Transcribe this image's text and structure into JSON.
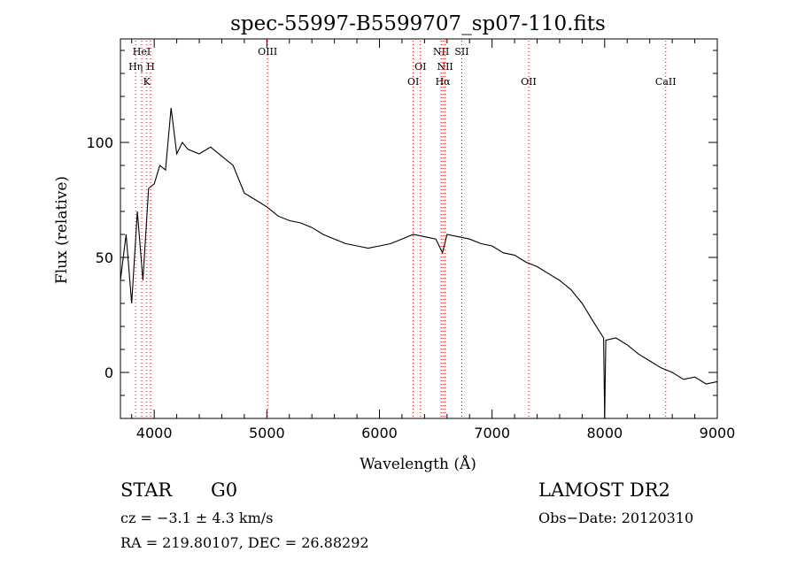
{
  "chart_data": {
    "type": "line",
    "title": "spec-55997-B5599707_sp07-110.fits",
    "xlabel": "Wavelength (Å)",
    "ylabel": "Flux (relative)",
    "xlim": [
      3700,
      9000
    ],
    "ylim": [
      -20,
      145
    ],
    "xticks": [
      4000,
      5000,
      6000,
      7000,
      8000,
      9000
    ],
    "yticks": [
      0,
      50,
      100
    ],
    "grid": false,
    "series": [
      {
        "x": [
          3700,
          3750,
          3800,
          3850,
          3900,
          3950,
          4000,
          4050,
          4100,
          4150,
          4200,
          4250,
          4300,
          4400,
          4500,
          4600,
          4700,
          4800,
          4900,
          5000,
          5100,
          5200,
          5300,
          5400,
          5500,
          5600,
          5700,
          5800,
          5900,
          6000,
          6100,
          6200,
          6300,
          6400,
          6500,
          6560,
          6600,
          6700,
          6800,
          6900,
          7000,
          7100,
          7200,
          7300,
          7400,
          7500,
          7600,
          7700,
          7800,
          7900,
          7990,
          8000,
          8010,
          8100,
          8200,
          8300,
          8400,
          8500,
          8600,
          8700,
          8800,
          8900,
          9000
        ],
        "y": [
          40,
          60,
          30,
          70,
          40,
          80,
          82,
          90,
          88,
          115,
          95,
          100,
          97,
          95,
          98,
          94,
          90,
          78,
          75,
          72,
          68,
          66,
          65,
          63,
          60,
          58,
          56,
          55,
          54,
          55,
          56,
          58,
          60,
          59,
          58,
          52,
          60,
          59,
          58,
          56,
          55,
          52,
          51,
          48,
          46,
          43,
          40,
          36,
          30,
          22,
          15,
          -20,
          14,
          15,
          12,
          8,
          5,
          2,
          0,
          -3,
          -2,
          -5,
          -4
        ]
      }
    ],
    "lines": [
      {
        "label": "HeI",
        "x": 3889,
        "label_row": 0
      },
      {
        "label": "Hη",
        "x": 3835,
        "label_row": 1
      },
      {
        "label": "H",
        "x": 3968,
        "label_row": 1
      },
      {
        "label": "K",
        "x": 3934,
        "label_row": 2
      },
      {
        "label": "OIII",
        "x": 5007,
        "label_row": 0
      },
      {
        "label": "OI",
        "x": 6364,
        "label_row": 1
      },
      {
        "label": "OI",
        "x": 6300,
        "label_row": 2
      },
      {
        "label": "NII",
        "x": 6548,
        "label_row": 0
      },
      {
        "label": "SII",
        "x": 6731,
        "label_row": 0
      },
      {
        "label": "NII",
        "x": 6583,
        "label_row": 1
      },
      {
        "label": "Hα",
        "x": 6563,
        "label_row": 2
      },
      {
        "label": "OII",
        "x": 7325,
        "label_row": 2
      },
      {
        "label": "CaII",
        "x": 8542,
        "label_row": 2
      }
    ],
    "line_color": "#000000",
    "marker_color": "#d00000"
  },
  "info": {
    "class": "STAR",
    "subclass": "G0",
    "survey": "LAMOST DR2",
    "cz": "cz = −3.1 ± 4.3 km/s",
    "obs_date": "Obs−Date: 20120310",
    "coords": "RA = 219.80107, DEC =  26.88292"
  }
}
